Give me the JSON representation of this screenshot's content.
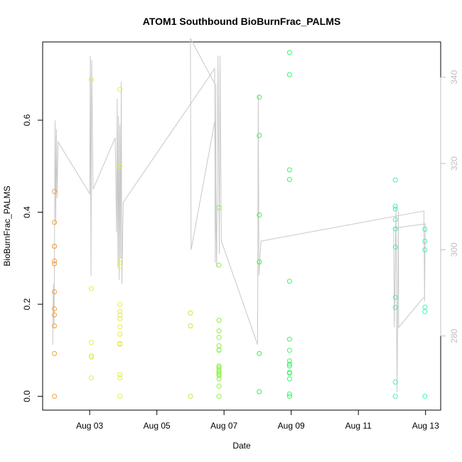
{
  "chart_data": {
    "type": "scatter",
    "title": "ATOM1 Southbound BioBurnFrac_PALMS",
    "xlabel": "Date",
    "ylabel": "BioBurnFrac_PALMS",
    "x_unit": "days (August 2016)",
    "xlim": [
      1.6,
      13.45
    ],
    "ylim": [
      -0.03,
      0.77
    ],
    "x_ticks": [
      {
        "value": 3,
        "label": "Aug 03"
      },
      {
        "value": 5,
        "label": "Aug 05"
      },
      {
        "value": 7,
        "label": "Aug 07"
      },
      {
        "value": 9,
        "label": "Aug 09"
      },
      {
        "value": 11,
        "label": "Aug 11"
      },
      {
        "value": 13,
        "label": "Aug 13"
      }
    ],
    "y_ticks": [
      {
        "value": 0.0,
        "label": "0.0"
      },
      {
        "value": 0.2,
        "label": "0.2"
      },
      {
        "value": 0.4,
        "label": "0.4"
      },
      {
        "value": 0.6,
        "label": "0.6"
      }
    ],
    "y2_ticks": [
      {
        "value": 280,
        "label": "280"
      },
      {
        "value": 300,
        "label": "300"
      },
      {
        "value": 320,
        "label": "320"
      },
      {
        "value": 340,
        "label": "340"
      }
    ],
    "y2lim": [
      262.8,
      348.2
    ],
    "y2_color": "#bfbfbf",
    "line_color": "#c8c8c8",
    "point_groups": [
      {
        "color": "#f2a040",
        "x": 1.95,
        "y": [
          0.445,
          0.378,
          0.326,
          0.326,
          0.294,
          0.288,
          0.227,
          0.19,
          0.177,
          0.153,
          0.093,
          0.0
        ]
      },
      {
        "color": "#e3ee3c",
        "x": 3.05,
        "y": [
          0.688,
          0.234,
          0.117,
          0.088,
          0.085,
          0.04
        ]
      },
      {
        "color": "#e3ee3c",
        "x": 3.9,
        "y": [
          0.667,
          0.5,
          0.297,
          0.283,
          0.2,
          0.185,
          0.176,
          0.168,
          0.151,
          0.135,
          0.115,
          0.113,
          0.047,
          0.04,
          0.0
        ]
      },
      {
        "color": "#b7f03e",
        "x": 6.0,
        "y": [
          0.181,
          0.153,
          0.0
        ]
      },
      {
        "color": "#8cf044",
        "x": 6.85,
        "y": [
          0.41,
          0.285,
          0.165,
          0.142,
          0.128,
          0.11,
          0.101,
          0.1,
          0.066,
          0.063,
          0.06,
          0.055,
          0.051,
          0.048,
          0.045,
          0.038,
          0.022,
          0.0
        ]
      },
      {
        "color": "#3ef042",
        "x": 8.05,
        "y": [
          0.65,
          0.567,
          0.394,
          0.292,
          0.093,
          0.01
        ]
      },
      {
        "color": "#40f06c",
        "x": 8.95,
        "y": [
          0.747,
          0.699,
          0.492,
          0.471,
          0.25,
          0.124,
          0.1,
          0.077,
          0.07,
          0.066,
          0.052,
          0.05,
          0.038,
          0.005,
          0.0
        ]
      },
      {
        "color": "#44f0ac",
        "x": 12.1,
        "y": [
          0.47,
          0.413,
          0.407,
          0.384,
          0.364,
          0.324,
          0.215,
          0.193,
          0.031,
          0.0
        ]
      },
      {
        "color": "#3ef0c2",
        "x": 12.98,
        "y": [
          0.363,
          0.337,
          0.318,
          0.194,
          0.184,
          0.0
        ]
      }
    ],
    "line_series": {
      "name": "",
      "axis": "right",
      "points": [
        [
          1.9,
          278
        ],
        [
          1.92,
          292
        ],
        [
          1.94,
          282
        ],
        [
          1.97,
          330
        ],
        [
          1.99,
          306
        ],
        [
          2.01,
          328
        ],
        [
          2.03,
          312
        ],
        [
          2.06,
          325
        ],
        [
          3.0,
          313
        ],
        [
          3.02,
          345
        ],
        [
          3.04,
          294
        ],
        [
          3.06,
          344
        ],
        [
          3.1,
          314
        ],
        [
          3.76,
          326
        ],
        [
          3.8,
          304
        ],
        [
          3.82,
          335
        ],
        [
          3.84,
          296
        ],
        [
          3.86,
          331
        ],
        [
          3.88,
          293
        ],
        [
          3.9,
          329
        ],
        [
          3.92,
          298
        ],
        [
          3.94,
          339
        ],
        [
          3.96,
          292
        ],
        [
          4.0,
          311
        ],
        [
          6.72,
          342
        ],
        [
          6.74,
          297
        ],
        [
          6.76,
          338
        ],
        [
          6.0,
          349
        ],
        [
          6.02,
          300
        ],
        [
          6.73,
          330
        ],
        [
          6.78,
          296
        ],
        [
          6.82,
          345
        ],
        [
          6.86,
          299
        ],
        [
          6.88,
          345
        ],
        [
          6.92,
          302
        ],
        [
          8.0,
          278
        ],
        [
          8.02,
          336
        ],
        [
          8.04,
          294
        ],
        [
          8.1,
          302
        ],
        [
          12.95,
          309
        ],
        [
          12.97,
          288
        ],
        [
          12.99,
          306
        ],
        [
          12.05,
          305
        ],
        [
          12.07,
          282
        ],
        [
          12.12,
          310
        ],
        [
          12.15,
          267
        ],
        [
          12.19,
          309
        ],
        [
          12.2,
          282
        ],
        [
          12.95,
          289
        ]
      ]
    },
    "grid": false,
    "legend": "none"
  }
}
